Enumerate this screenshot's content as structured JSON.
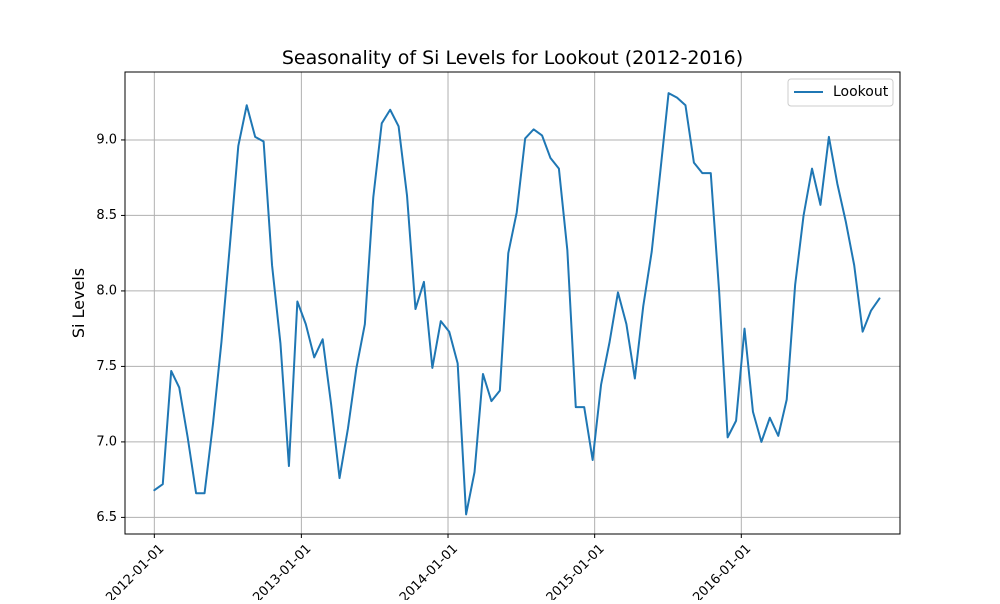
{
  "chart_data": {
    "type": "line",
    "title": "Seasonality of Si Levels for Lookout (2012-2016)",
    "xlabel": "",
    "ylabel": "Si Levels",
    "x_axis_type": "date",
    "grid": true,
    "legend_position": "top-right",
    "xlim": [
      "2011-10-20",
      "2017-01-30"
    ],
    "ylim": [
      6.39,
      9.45
    ],
    "x_ticks": [
      "2012-01-01",
      "2013-01-01",
      "2014-01-01",
      "2015-01-01",
      "2016-01-01"
    ],
    "y_ticks": [
      6.5,
      7.0,
      7.5,
      8.0,
      8.5,
      9.0
    ],
    "y_tick_labels": [
      "6.5",
      "7.0",
      "7.5",
      "8.0",
      "8.5",
      "9.0"
    ],
    "series": [
      {
        "name": "Lookout",
        "color": "#1f77b4",
        "points": [
          [
            "2012-01-01",
            6.68
          ],
          [
            "2012-01-22",
            6.72
          ],
          [
            "2012-02-12",
            7.47
          ],
          [
            "2012-03-03",
            7.36
          ],
          [
            "2012-03-24",
            7.03
          ],
          [
            "2012-04-14",
            6.66
          ],
          [
            "2012-05-05",
            6.66
          ],
          [
            "2012-05-26",
            7.12
          ],
          [
            "2012-06-16",
            7.66
          ],
          [
            "2012-07-07",
            8.3
          ],
          [
            "2012-07-28",
            8.96
          ],
          [
            "2012-08-18",
            9.23
          ],
          [
            "2012-09-08",
            9.02
          ],
          [
            "2012-09-29",
            8.99
          ],
          [
            "2012-10-20",
            8.17
          ],
          [
            "2012-11-10",
            7.65
          ],
          [
            "2012-12-01",
            6.84
          ],
          [
            "2012-12-22",
            7.93
          ],
          [
            "2013-01-12",
            7.78
          ],
          [
            "2013-02-02",
            7.56
          ],
          [
            "2013-02-23",
            7.68
          ],
          [
            "2013-03-16",
            7.25
          ],
          [
            "2013-04-06",
            6.76
          ],
          [
            "2013-04-27",
            7.09
          ],
          [
            "2013-05-18",
            7.49
          ],
          [
            "2013-06-08",
            7.78
          ],
          [
            "2013-06-29",
            8.62
          ],
          [
            "2013-07-20",
            9.11
          ],
          [
            "2013-08-10",
            9.2
          ],
          [
            "2013-08-31",
            9.09
          ],
          [
            "2013-09-21",
            8.63
          ],
          [
            "2013-10-12",
            7.88
          ],
          [
            "2013-11-02",
            8.06
          ],
          [
            "2013-11-23",
            7.49
          ],
          [
            "2013-12-14",
            7.8
          ],
          [
            "2014-01-04",
            7.73
          ],
          [
            "2014-01-25",
            7.52
          ],
          [
            "2014-02-15",
            6.52
          ],
          [
            "2014-03-08",
            6.8
          ],
          [
            "2014-03-29",
            7.45
          ],
          [
            "2014-04-19",
            7.27
          ],
          [
            "2014-05-10",
            7.34
          ],
          [
            "2014-05-31",
            8.25
          ],
          [
            "2014-06-21",
            8.52
          ],
          [
            "2014-07-12",
            9.01
          ],
          [
            "2014-08-02",
            9.07
          ],
          [
            "2014-08-23",
            9.03
          ],
          [
            "2014-09-13",
            8.88
          ],
          [
            "2014-10-04",
            8.81
          ],
          [
            "2014-10-25",
            8.27
          ],
          [
            "2014-11-15",
            7.23
          ],
          [
            "2014-12-06",
            7.23
          ],
          [
            "2014-12-27",
            6.88
          ],
          [
            "2015-01-17",
            7.38
          ],
          [
            "2015-02-07",
            7.66
          ],
          [
            "2015-02-28",
            7.99
          ],
          [
            "2015-03-21",
            7.78
          ],
          [
            "2015-04-11",
            7.42
          ],
          [
            "2015-05-02",
            7.9
          ],
          [
            "2015-05-23",
            8.26
          ],
          [
            "2015-06-13",
            8.78
          ],
          [
            "2015-07-04",
            9.31
          ],
          [
            "2015-07-25",
            9.28
          ],
          [
            "2015-08-15",
            9.23
          ],
          [
            "2015-09-05",
            8.85
          ],
          [
            "2015-09-26",
            8.78
          ],
          [
            "2015-10-17",
            8.78
          ],
          [
            "2015-11-07",
            7.99
          ],
          [
            "2015-11-28",
            7.03
          ],
          [
            "2015-12-19",
            7.14
          ],
          [
            "2016-01-09",
            7.75
          ],
          [
            "2016-01-30",
            7.2
          ],
          [
            "2016-02-20",
            7.0
          ],
          [
            "2016-03-12",
            7.16
          ],
          [
            "2016-04-02",
            7.04
          ],
          [
            "2016-04-23",
            7.28
          ],
          [
            "2016-05-14",
            8.04
          ],
          [
            "2016-06-04",
            8.5
          ],
          [
            "2016-06-25",
            8.81
          ],
          [
            "2016-07-16",
            8.57
          ],
          [
            "2016-08-06",
            9.02
          ],
          [
            "2016-08-27",
            8.71
          ],
          [
            "2016-09-17",
            8.46
          ],
          [
            "2016-10-08",
            8.17
          ],
          [
            "2016-10-29",
            7.73
          ],
          [
            "2016-11-19",
            7.87
          ],
          [
            "2016-12-10",
            7.95
          ]
        ]
      }
    ]
  }
}
